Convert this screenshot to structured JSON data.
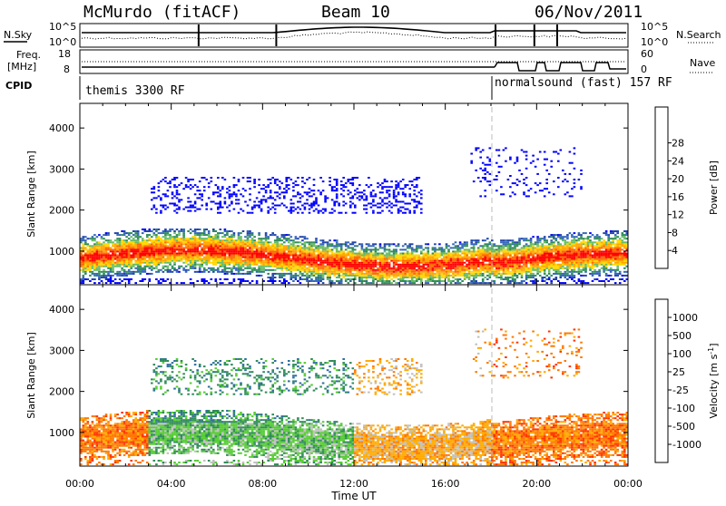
{
  "header": {
    "site": "McMurdo (fitACF)",
    "beam": "Beam 10",
    "date": "06/Nov/2011"
  },
  "top_panels": {
    "nsky_label": "N.Sky",
    "nsky_ticks": [
      "10^5",
      "10^0"
    ],
    "nsearch_label": "N.Search",
    "nsearch_ticks": [
      "10^5",
      "10^0"
    ],
    "freq_label": "Freq.",
    "freq_unit": "[MHz]",
    "freq_ticks": [
      "18",
      "8"
    ],
    "nave_label": "Nave",
    "nave_ticks": [
      "60",
      "0"
    ],
    "cpid_label": "CPID",
    "cpid_segments": [
      {
        "label": "themis 3300 RF",
        "start_hour": 0,
        "end_hour": 18.0
      },
      {
        "label": "normalsound (fast) 157 RF",
        "start_hour": 18.0,
        "end_hour": 24
      }
    ]
  },
  "chart_data": [
    {
      "type": "heatmap",
      "name": "power",
      "ylabel": "Slant Range [km]",
      "xlabel": "Time UT",
      "x_ticks": [
        "00:00",
        "04:00",
        "08:00",
        "12:00",
        "16:00",
        "20:00",
        "00:00"
      ],
      "y_ticks": [
        1000,
        2000,
        3000,
        4000
      ],
      "xlim_hours": [
        0,
        24
      ],
      "ylim_km": [
        180,
        4600
      ],
      "colorbar_label": "Power [dB]",
      "colorbar_ticks": [
        4,
        8,
        12,
        16,
        20,
        24,
        28
      ],
      "colorbar_colors": [
        "#0000ff",
        "#2244aa",
        "#3366bb",
        "#2e8b57",
        "#66bb66",
        "#ffd700",
        "#ffa500",
        "#ff6600",
        "#ff0000"
      ]
    },
    {
      "type": "heatmap",
      "name": "velocity",
      "ylabel": "Slant Range [km]",
      "xlabel": "Time UT",
      "x_ticks": [
        "00:00",
        "04:00",
        "08:00",
        "12:00",
        "16:00",
        "20:00",
        "00:00"
      ],
      "y_ticks": [
        1000,
        2000,
        3000,
        4000
      ],
      "xlim_hours": [
        0,
        24
      ],
      "ylim_km": [
        180,
        4600
      ],
      "colorbar_label": "Velocity [m s",
      "colorbar_sup": "-1",
      "colorbar_label_end": "]",
      "colorbar_ticks": [
        1000,
        500,
        100,
        25,
        -25,
        -100,
        -500,
        -1000
      ],
      "colorbar_colors": [
        "#2233bb",
        "#2e6e9e",
        "#2e8b57",
        "#55cc33",
        "#c0c0c0",
        "#ffaa00",
        "#ff7700",
        "#ff3300",
        "#ee0000"
      ]
    }
  ],
  "x_axis_title": "Time UT"
}
